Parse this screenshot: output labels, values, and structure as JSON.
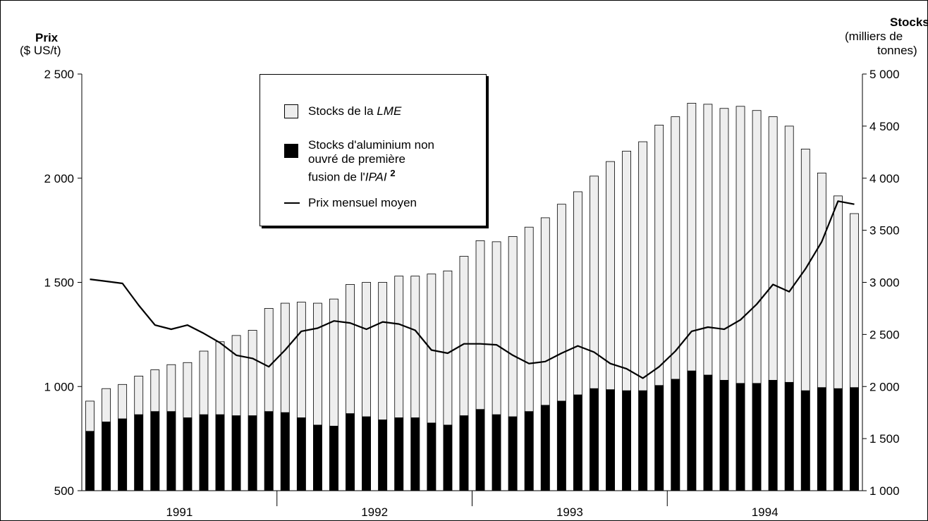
{
  "chart_data": {
    "type": "bar+line",
    "left_axis": {
      "title": "Prix",
      "unit": "($ US/t)",
      "ylim": [
        500,
        2500
      ],
      "ticks": [
        500,
        1000,
        1500,
        2000,
        2500
      ],
      "tick_labels": [
        "500",
        "1 000",
        "1 500",
        "2 000",
        "2 500"
      ]
    },
    "right_axis": {
      "title": "Stocks",
      "unit_line1": "(milliers de",
      "unit_line2": "tonnes)",
      "ylim": [
        1000,
        5000
      ],
      "ticks": [
        1000,
        1500,
        2000,
        2500,
        3000,
        3500,
        4000,
        4500,
        5000
      ],
      "tick_labels": [
        "1 000",
        "1 500",
        "2 000",
        "2 500",
        "3 000",
        "3 500",
        "4 000",
        "4 500",
        "5 000"
      ]
    },
    "years": [
      "1991",
      "1992",
      "1993",
      "1994"
    ],
    "months_per_year": 12,
    "series": [
      {
        "name": "Stocks de la LME",
        "axis": "right",
        "color": "#eeeeee",
        "values": [
          1860,
          1980,
          2020,
          2100,
          2160,
          2210,
          2230,
          2340,
          2430,
          2490,
          2540,
          2750,
          2800,
          2810,
          2800,
          2840,
          2980,
          3000,
          3000,
          3060,
          3060,
          3080,
          3110,
          3250,
          3400,
          3390,
          3440,
          3530,
          3620,
          3750,
          3870,
          4020,
          4160,
          4260,
          4350,
          4510,
          4590,
          4720,
          4710,
          4670,
          4690,
          4650,
          4590,
          4500,
          4280,
          4050,
          3830,
          3660
        ]
      },
      {
        "name": "Stocks d'aluminium non ouvré de première fusion de l'IPAI",
        "axis": "right",
        "color": "#000000",
        "values": [
          1570,
          1660,
          1690,
          1730,
          1760,
          1760,
          1700,
          1730,
          1730,
          1720,
          1720,
          1760,
          1750,
          1700,
          1630,
          1620,
          1740,
          1710,
          1680,
          1700,
          1700,
          1650,
          1630,
          1720,
          1780,
          1730,
          1710,
          1760,
          1820,
          1860,
          1920,
          1980,
          1970,
          1960,
          1960,
          2010,
          2070,
          2150,
          2110,
          2060,
          2030,
          2030,
          2060,
          2040,
          1960,
          1990,
          1980,
          1990
        ]
      },
      {
        "name": "Prix mensuel moyen",
        "axis": "left",
        "color": "#000000",
        "values": [
          1515,
          1505,
          1495,
          1390,
          1295,
          1275,
          1295,
          1255,
          1210,
          1150,
          1135,
          1095,
          1175,
          1265,
          1280,
          1315,
          1305,
          1275,
          1310,
          1300,
          1270,
          1175,
          1160,
          1205,
          1205,
          1200,
          1150,
          1110,
          1120,
          1160,
          1195,
          1165,
          1110,
          1085,
          1040,
          1095,
          1170,
          1265,
          1285,
          1275,
          1320,
          1395,
          1490,
          1455,
          1565,
          1695,
          1890,
          1875
        ]
      }
    ],
    "legend": {
      "lme": "Stocks de la",
      "lme_em": "LME",
      "ipai_line1": "Stocks d'aluminium non",
      "ipai_line2": "ouvré de première",
      "ipai_line3": "fusion de l'",
      "ipai_em": "IPAI",
      "ipai_note": "2",
      "price": "Prix mensuel moyen"
    },
    "colors": {
      "lme": "#eeeeee",
      "ipai": "#000000",
      "price": "#000000"
    },
    "legend_position": "top-left"
  }
}
